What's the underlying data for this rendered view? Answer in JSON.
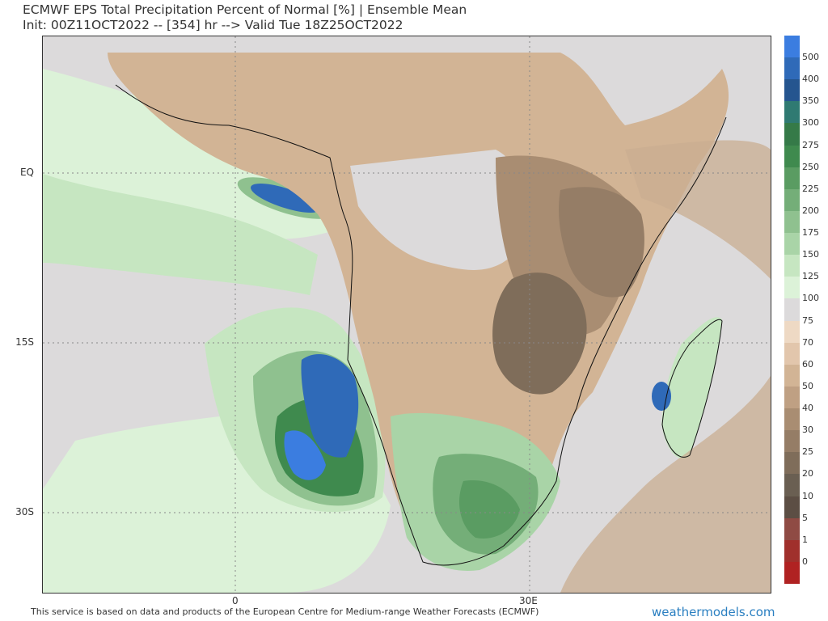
{
  "header": {
    "title": "ECMWF EPS Total Precipitation Percent of Normal [%] | Ensemble Mean",
    "subtitle": "Init: 00Z11OCT2022 -- [354] hr --> Valid Tue 18Z25OCT2022"
  },
  "map": {
    "lat_labels": [
      "EQ",
      "15S",
      "30S"
    ],
    "lon_labels": [
      "0",
      "30E"
    ]
  },
  "colorbar": {
    "levels": [
      "500",
      "400",
      "350",
      "300",
      "275",
      "250",
      "225",
      "200",
      "175",
      "150",
      "125",
      "100",
      "75",
      "70",
      "60",
      "50",
      "40",
      "30",
      "25",
      "20",
      "10",
      "5",
      "1",
      "0"
    ],
    "colors": [
      "#3b7de0",
      "#2f6ab8",
      "#25558f",
      "#2f7a72",
      "#357a48",
      "#3f8a4e",
      "#5a9c62",
      "#74ae78",
      "#8fc18f",
      "#a9d4a7",
      "#c6e6c1",
      "#dcf2d8",
      "#dcdadb",
      "#eed9c4",
      "#e2c6ac",
      "#d2b495",
      "#bfa083",
      "#a98d72",
      "#957d66",
      "#7f6d5a",
      "#6a5f52",
      "#5c4e44",
      "#8f4b44",
      "#a0302c",
      "#b02222"
    ]
  },
  "footer": {
    "attribution": "This service is based on data and products of the European Centre for Medium-range Weather Forecasts (ECMWF)",
    "brand": "weathermodels.com"
  }
}
